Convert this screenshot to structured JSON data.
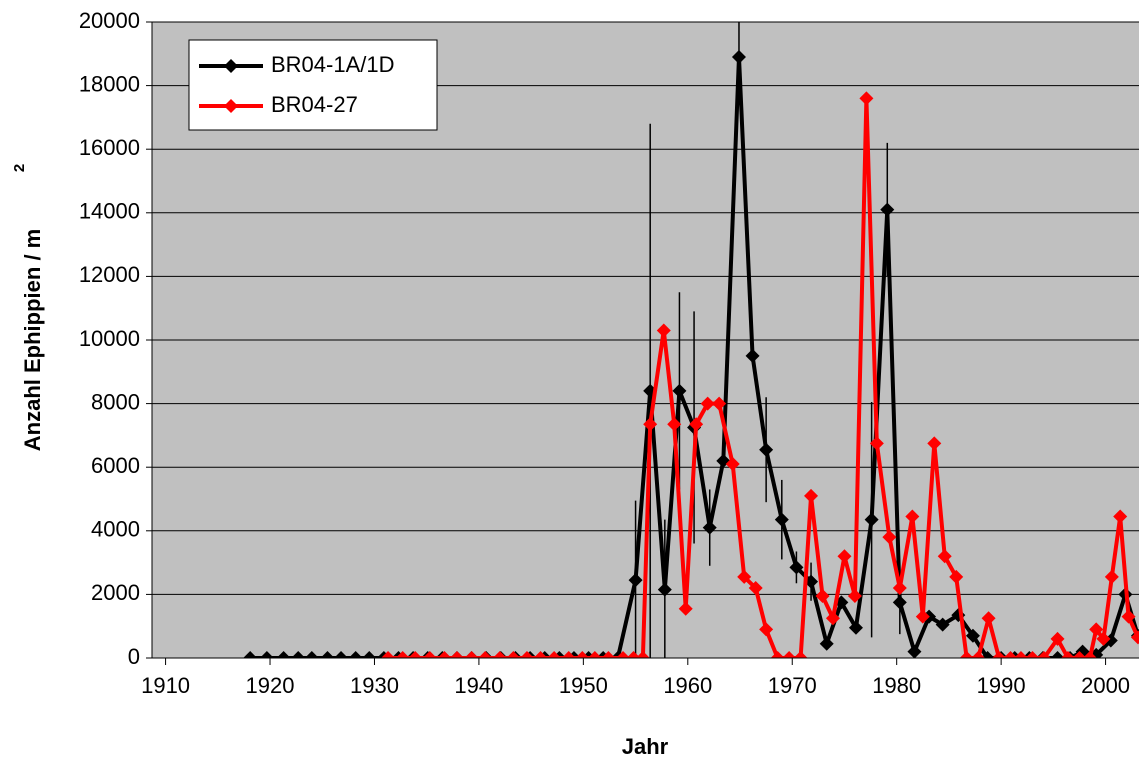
{
  "chart_data": {
    "type": "line",
    "xlabel": "Jahr",
    "ylabel": "Anzahl Ephippien / m",
    "ylabel_superscript": "2",
    "xlim": [
      1908.7,
      2003.2
    ],
    "xticks": [
      1910,
      1920,
      1930,
      1940,
      1950,
      1960,
      1970,
      1980,
      1990,
      2000
    ],
    "ylim": [
      0,
      20000
    ],
    "yticks": [
      0,
      2000,
      4000,
      6000,
      8000,
      10000,
      12000,
      14000,
      16000,
      18000,
      20000
    ],
    "grid": true,
    "legend": "upper left",
    "background": "#c0c0c0",
    "series": [
      {
        "name": "BR04-1A/1D",
        "color": "#000000",
        "x": [
          1918.1,
          1919.7,
          1921.3,
          1922.7,
          1924.0,
          1925.5,
          1926.8,
          1928.2,
          1929.5,
          1930.9,
          1932.3,
          1933.7,
          1935.1,
          1936.5,
          1937.9,
          1939.3,
          1940.7,
          1942.1,
          1943.5,
          1944.9,
          1946.3,
          1947.7,
          1949.1,
          1950.5,
          1951.9,
          1953.3,
          1955.0,
          1956.4,
          1957.8,
          1959.2,
          1960.6,
          1962.1,
          1963.4,
          1964.9,
          1966.2,
          1967.5,
          1969.0,
          1970.4,
          1971.8,
          1973.3,
          1974.7,
          1976.1,
          1977.6,
          1979.1,
          1980.3,
          1981.7,
          1983.1,
          1984.4,
          1985.9,
          1987.3,
          1988.7,
          1990.0,
          1991.3,
          1992.7,
          1994.0,
          1995.4,
          1996.6,
          1997.8,
          1999.1,
          2000.5,
          2001.9,
          2003.1
        ],
        "values": [
          0,
          0,
          0,
          0,
          0,
          0,
          0,
          0,
          0,
          0,
          0,
          0,
          0,
          0,
          0,
          0,
          0,
          0,
          0,
          0,
          0,
          0,
          0,
          0,
          0,
          0,
          2450,
          8400,
          2150,
          8400,
          7250,
          4100,
          6200,
          18900,
          9500,
          6550,
          4350,
          2850,
          2400,
          450,
          1750,
          950,
          4350,
          14100,
          1750,
          200,
          1300,
          1050,
          1350,
          700,
          0,
          0,
          0,
          0,
          0,
          0,
          0,
          200,
          100,
          550,
          2000,
          700
        ],
        "errors": [
          null,
          null,
          null,
          null,
          null,
          null,
          null,
          null,
          null,
          null,
          null,
          null,
          null,
          null,
          null,
          null,
          null,
          null,
          null,
          null,
          null,
          null,
          null,
          null,
          null,
          null,
          2500,
          8400,
          2200,
          3100,
          3650,
          1200,
          null,
          1500,
          null,
          1650,
          1250,
          500,
          600,
          null,
          null,
          null,
          3700,
          2100,
          1000,
          null,
          null,
          null,
          null,
          null,
          null,
          null,
          null,
          null,
          null,
          null,
          null,
          null,
          null,
          null,
          null,
          null
        ]
      },
      {
        "name": "BR04-27",
        "color": "#ff0000",
        "x": [
          1931.3,
          1932.7,
          1933.9,
          1935.3,
          1936.7,
          1937.9,
          1939.3,
          1940.6,
          1942.0,
          1943.3,
          1944.6,
          1945.9,
          1947.2,
          1948.6,
          1949.9,
          1951.1,
          1952.4,
          1953.8,
          1954.8,
          1955.7,
          1956.4,
          1957.7,
          1958.7,
          1959.8,
          1960.8,
          1961.9,
          1963.0,
          1964.3,
          1965.4,
          1966.5,
          1967.5,
          1968.6,
          1969.7,
          1970.8,
          1971.8,
          1972.9,
          1973.9,
          1975.0,
          1976.0,
          1977.1,
          1978.1,
          1979.3,
          1980.3,
          1981.5,
          1982.5,
          1983.6,
          1984.6,
          1985.7,
          1986.7,
          1987.8,
          1988.8,
          1989.8,
          1990.9,
          1991.9,
          1993.0,
          1994.1,
          1995.4,
          1996.4,
          1997.5,
          1998.5,
          1999.1,
          1999.8,
          2000.6,
          2001.4,
          2002.2,
          2003.1
        ],
        "values": [
          0,
          0,
          0,
          0,
          0,
          0,
          0,
          0,
          0,
          0,
          0,
          0,
          0,
          0,
          0,
          0,
          0,
          0,
          0,
          0,
          7350,
          10300,
          7350,
          1550,
          7350,
          8000,
          8000,
          6100,
          2550,
          2200,
          900,
          0,
          0,
          0,
          5100,
          1950,
          1250,
          3200,
          1950,
          17600,
          6750,
          3800,
          2200,
          4450,
          1300,
          6750,
          3200,
          2550,
          0,
          0,
          1250,
          0,
          0,
          0,
          0,
          0,
          600,
          0,
          0,
          0,
          900,
          600,
          2550,
          4450,
          1300,
          650
        ]
      }
    ]
  }
}
